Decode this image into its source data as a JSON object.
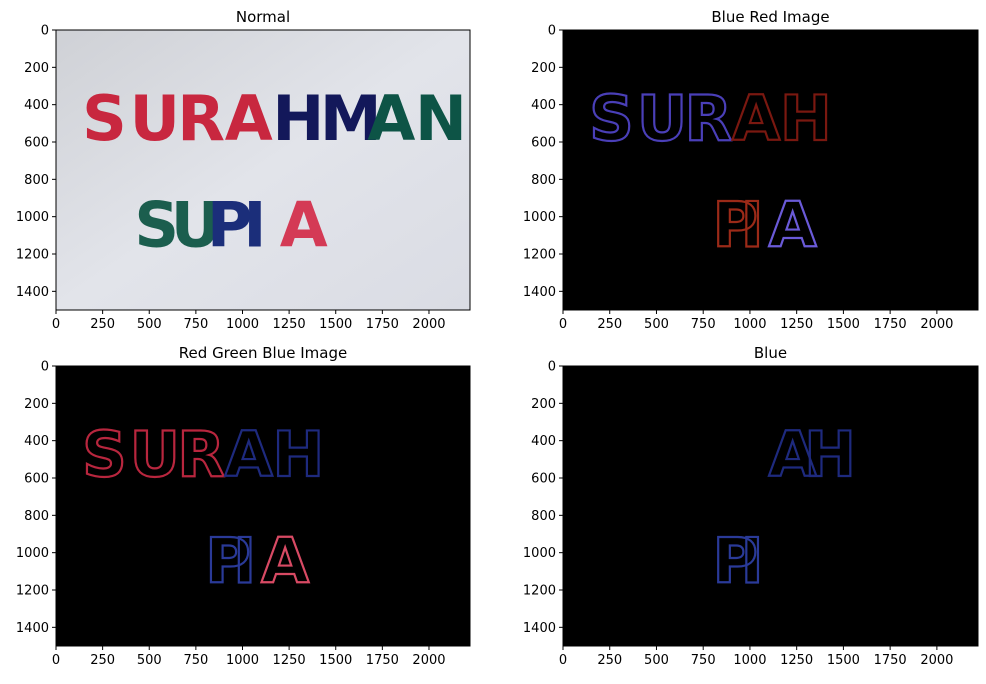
{
  "figure": {
    "panels": [
      {
        "title": "Normal",
        "type": "image",
        "background": "#d9dbe3",
        "text_rows": [
          {
            "text": "SURAHMAN",
            "letter_colors": [
              "#c8273f",
              "#c8273f",
              "#c8273f",
              "#c8273f",
              "#13185a",
              "#13185a",
              "#0d5446",
              "#0d5446"
            ]
          },
          {
            "text": "SUPIA",
            "letter_colors": [
              "#1b5e4e",
              "#1b5e4e",
              "#1b2e7a",
              "#1b2e7a",
              "#d43a55"
            ]
          }
        ]
      },
      {
        "title": "Blue Red Image",
        "type": "image",
        "background": "#000000",
        "text_rows": [
          {
            "text": "SURAH",
            "letter_colors": [
              "#4a3fb8",
              "#4a3fb8",
              "#4a3fb8",
              "#7a1810",
              "#7a1810"
            ]
          },
          {
            "text": "PIA",
            "letter_colors": [
              "#9b2a18",
              "#9b2a18",
              "#6a5ad8"
            ]
          }
        ]
      },
      {
        "title": "Red Green Blue Image",
        "type": "image",
        "background": "#000000",
        "text_rows": [
          {
            "text": "SURAH",
            "letter_colors": [
              "#b8263e",
              "#b8263e",
              "#b8263e",
              "#1e2a7e",
              "#1e2a7e"
            ]
          },
          {
            "text": "PIA",
            "letter_colors": [
              "#2a3a98",
              "#2a3a98",
              "#d84a64"
            ]
          }
        ]
      },
      {
        "title": "Blue",
        "type": "image",
        "background": "#000000",
        "text_rows": [
          {
            "text": "AH",
            "letter_colors": [
              "#1e2a7e",
              "#1e2a7e"
            ]
          },
          {
            "text": "PI",
            "letter_colors": [
              "#2a3a98",
              "#2a3a98"
            ]
          }
        ]
      }
    ]
  },
  "chart_data": [
    {
      "type": "image",
      "title": "Normal",
      "xlim": [
        0,
        2220
      ],
      "ylim": [
        1500,
        0
      ],
      "xticks": [
        0,
        250,
        500,
        750,
        1000,
        1250,
        1500,
        1750,
        2000
      ],
      "yticks": [
        0,
        200,
        400,
        600,
        800,
        1000,
        1200,
        1400
      ]
    },
    {
      "type": "image",
      "title": "Blue Red Image",
      "xlim": [
        0,
        2220
      ],
      "ylim": [
        1500,
        0
      ],
      "xticks": [
        0,
        250,
        500,
        750,
        1000,
        1250,
        1500,
        1750,
        2000
      ],
      "yticks": [
        0,
        200,
        400,
        600,
        800,
        1000,
        1200,
        1400
      ]
    },
    {
      "type": "image",
      "title": "Red Green Blue Image",
      "xlim": [
        0,
        2220
      ],
      "ylim": [
        1500,
        0
      ],
      "xticks": [
        0,
        250,
        500,
        750,
        1000,
        1250,
        1500,
        1750,
        2000
      ],
      "yticks": [
        0,
        200,
        400,
        600,
        800,
        1000,
        1200,
        1400
      ]
    },
    {
      "type": "image",
      "title": "Blue",
      "xlim": [
        0,
        2220
      ],
      "ylim": [
        1500,
        0
      ],
      "xticks": [
        0,
        250,
        500,
        750,
        1000,
        1250,
        1500,
        1750,
        2000
      ],
      "yticks": [
        0,
        200,
        400,
        600,
        800,
        1000,
        1200,
        1400
      ]
    }
  ]
}
